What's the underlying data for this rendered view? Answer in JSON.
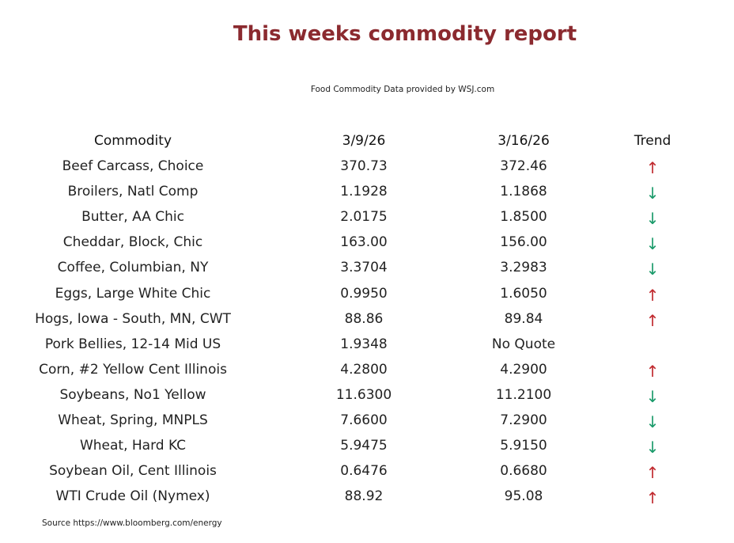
{
  "header": {
    "title": "This weeks commodity report",
    "subtitle": "Food Commodity Data provided by WSJ.com"
  },
  "table": {
    "columns": [
      "Commodity",
      "3/9/26",
      "3/16/26",
      "Trend"
    ],
    "rows": [
      {
        "name": "Beef Carcass, Choice",
        "prev": "370.73",
        "curr": "372.46",
        "trend": "↑",
        "trend_color": "#c0282d"
      },
      {
        "name": "Broilers, Natl Comp",
        "prev": "1.1928",
        "curr": "1.1868",
        "trend": "↓",
        "trend_color": "#1a9a6a"
      },
      {
        "name": "Butter, AA Chic",
        "prev": "2.0175",
        "curr": "1.8500",
        "trend": "↓",
        "trend_color": "#1a9a6a"
      },
      {
        "name": "Cheddar, Block, Chic",
        "prev": "163.00",
        "curr": "156.00",
        "trend": "↓",
        "trend_color": "#1a9a6a"
      },
      {
        "name": "Coffee, Columbian, NY",
        "prev": "3.3704",
        "curr": "3.2983",
        "trend": "↓",
        "trend_color": "#1a9a6a"
      },
      {
        "name": "Eggs, Large White Chic",
        "prev": "0.9950",
        "curr": "1.6050",
        "trend": "↑",
        "trend_color": "#c0282d"
      },
      {
        "name": "Hogs, Iowa - South, MN, CWT",
        "prev": "88.86",
        "curr": "89.84",
        "trend": "↑",
        "trend_color": "#c0282d"
      },
      {
        "name": "Pork Bellies, 12-14 Mid US",
        "prev": "1.9348",
        "curr": "No Quote",
        "trend": null,
        "trend_color": null
      },
      {
        "name": "Corn, #2 Yellow Cent Illinois",
        "prev": "4.2800",
        "curr": "4.2900",
        "trend": "↑",
        "trend_color": "#c0282d"
      },
      {
        "name": "Soybeans, No1 Yellow",
        "prev": "11.6300",
        "curr": "11.2100",
        "trend": "↓",
        "trend_color": "#1a9a6a"
      },
      {
        "name": "Wheat, Spring, MNPLS",
        "prev": "7.6600",
        "curr": "7.2900",
        "trend": "↓",
        "trend_color": "#1a9a6a"
      },
      {
        "name": "Wheat, Hard KC",
        "prev": "5.9475",
        "curr": "5.9150",
        "trend": "↓",
        "trend_color": "#1a9a6a"
      },
      {
        "name": "Soybean Oil, Cent Illinois",
        "prev": "0.6476",
        "curr": "0.6680",
        "trend": "↑",
        "trend_color": "#c0282d"
      },
      {
        "name": "WTI Crude Oil (Nymex)",
        "prev": "88.92",
        "curr": "95.08",
        "trend": "↑",
        "trend_color": "#c0282d"
      }
    ]
  },
  "footer": {
    "source": "Source https://www.bloomberg.com/energy"
  }
}
